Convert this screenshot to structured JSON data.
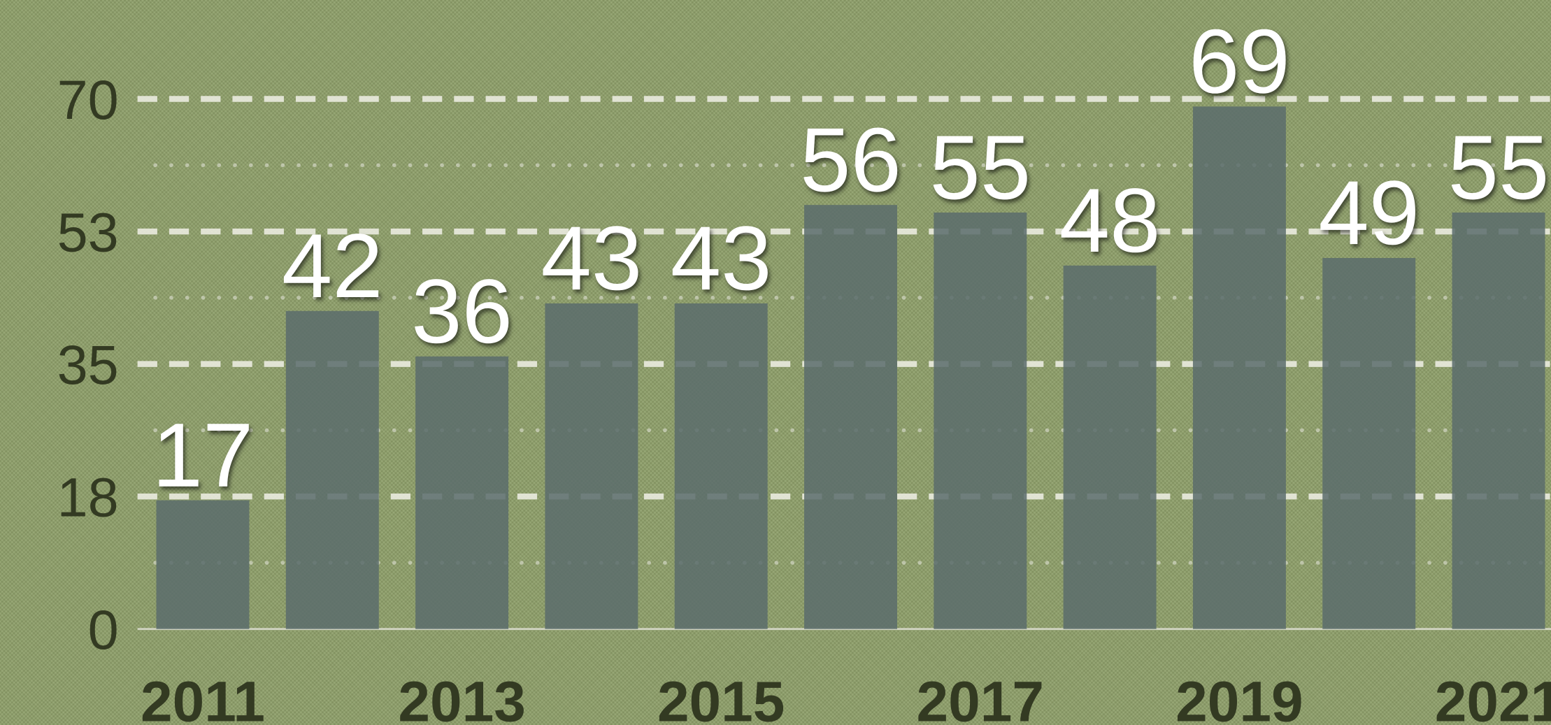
{
  "chart_data": {
    "type": "bar",
    "categories": [
      "2011",
      null,
      "2013",
      null,
      "2015",
      null,
      "2017",
      null,
      "2019",
      null,
      "2021"
    ],
    "values": [
      17,
      42,
      36,
      43,
      43,
      56,
      55,
      48,
      69,
      49,
      55
    ],
    "color": "#5a6c6c",
    "ylim": [
      0,
      70
    ],
    "yticks": [
      0,
      {
        "value": 17.5,
        "label": "18"
      },
      35,
      {
        "value": 52.5,
        "label": "53"
      },
      70
    ],
    "grid": true
  }
}
